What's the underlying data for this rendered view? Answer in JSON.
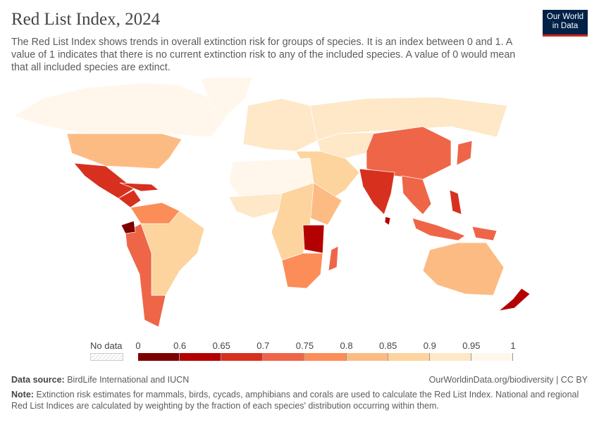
{
  "header": {
    "title": "Red List Index, 2024",
    "subtitle": "The Red List Index shows trends in overall extinction risk for groups of species. It is an index between 0 and 1. A value of 1 indicates that there is no current extinction risk to any of the included species. A value of 0 would mean that all included species are extinct.",
    "logo": "Our World in Data",
    "logo_colors": {
      "background": "#002147",
      "underline": "#ce261e"
    }
  },
  "legend": {
    "no_data_label": "No data",
    "ticks": [
      "0",
      "0.6",
      "0.65",
      "0.7",
      "0.75",
      "0.8",
      "0.85",
      "0.9",
      "0.95",
      "1"
    ],
    "bins": [
      {
        "from": 0,
        "to": 0.6,
        "color": "#7f0000"
      },
      {
        "from": 0.6,
        "to": 0.65,
        "color": "#b30000"
      },
      {
        "from": 0.65,
        "to": 0.7,
        "color": "#d7301f"
      },
      {
        "from": 0.7,
        "to": 0.75,
        "color": "#ef6548"
      },
      {
        "from": 0.75,
        "to": 0.8,
        "color": "#fc8d59"
      },
      {
        "from": 0.8,
        "to": 0.85,
        "color": "#fdbb84"
      },
      {
        "from": 0.85,
        "to": 0.9,
        "color": "#fdd49e"
      },
      {
        "from": 0.9,
        "to": 0.95,
        "color": "#fee8c8"
      },
      {
        "from": 0.95,
        "to": 1,
        "color": "#fff7ec"
      }
    ]
  },
  "map_regions": {
    "canada_alaska": 0.97,
    "greenland": 0.97,
    "usa": 0.83,
    "mexico": 0.67,
    "central_america": 0.68,
    "caribbean": 0.67,
    "south_america_east": 0.87,
    "south_america_west": 0.72,
    "ecuador": 0.58,
    "northern_south_america": 0.77,
    "europe": 0.92,
    "russia": 0.91,
    "middle_east": 0.87,
    "central_asia": 0.9,
    "china": 0.72,
    "india": 0.68,
    "sri_lanka": 0.6,
    "southeast_asia": 0.71,
    "indonesia": 0.7,
    "philippines": 0.68,
    "japan": 0.72,
    "papua": 0.72,
    "north_africa": 0.96,
    "west_africa": 0.9,
    "central_africa": 0.88,
    "east_africa": 0.62,
    "horn_africa": 0.82,
    "southern_africa": 0.76,
    "madagascar": 0.71,
    "australia": 0.82,
    "new_zealand": 0.6
  },
  "footer": {
    "source_label": "Data source:",
    "source": "BirdLife International and IUCN",
    "url": "OurWorldinData.org/biodiversity | CC BY",
    "note_label": "Note:",
    "note": "Extinction risk estimates for mammals, birds, cycads, amphibians and corals are used to calculate the Red List Index. National and regional Red List Indices are calculated by weighting by the fraction of each species' distribution occurring within them."
  }
}
